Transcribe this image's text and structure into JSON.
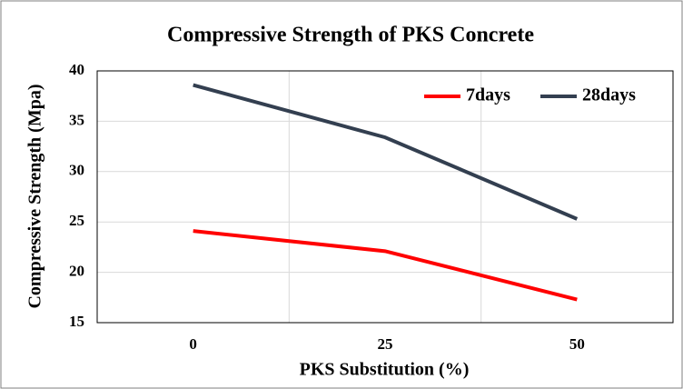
{
  "chart_data": {
    "type": "line",
    "title": "Compressive  Strength of PKS Concrete",
    "x_label": "PKS Substitution (%)",
    "y_label": "Compressive Strength (Mpa)",
    "categories": [
      "0",
      "25",
      "50"
    ],
    "series": [
      {
        "name": "7days",
        "color": "#ff0000",
        "values": [
          24.1,
          22.1,
          17.3
        ]
      },
      {
        "name": "28days",
        "color": "#333f50",
        "values": [
          38.6,
          33.4,
          25.3
        ]
      }
    ],
    "ylim": [
      15,
      40
    ],
    "yticks": [
      15,
      20,
      25,
      30,
      35,
      40
    ],
    "grid": true,
    "legend": "upper right"
  }
}
